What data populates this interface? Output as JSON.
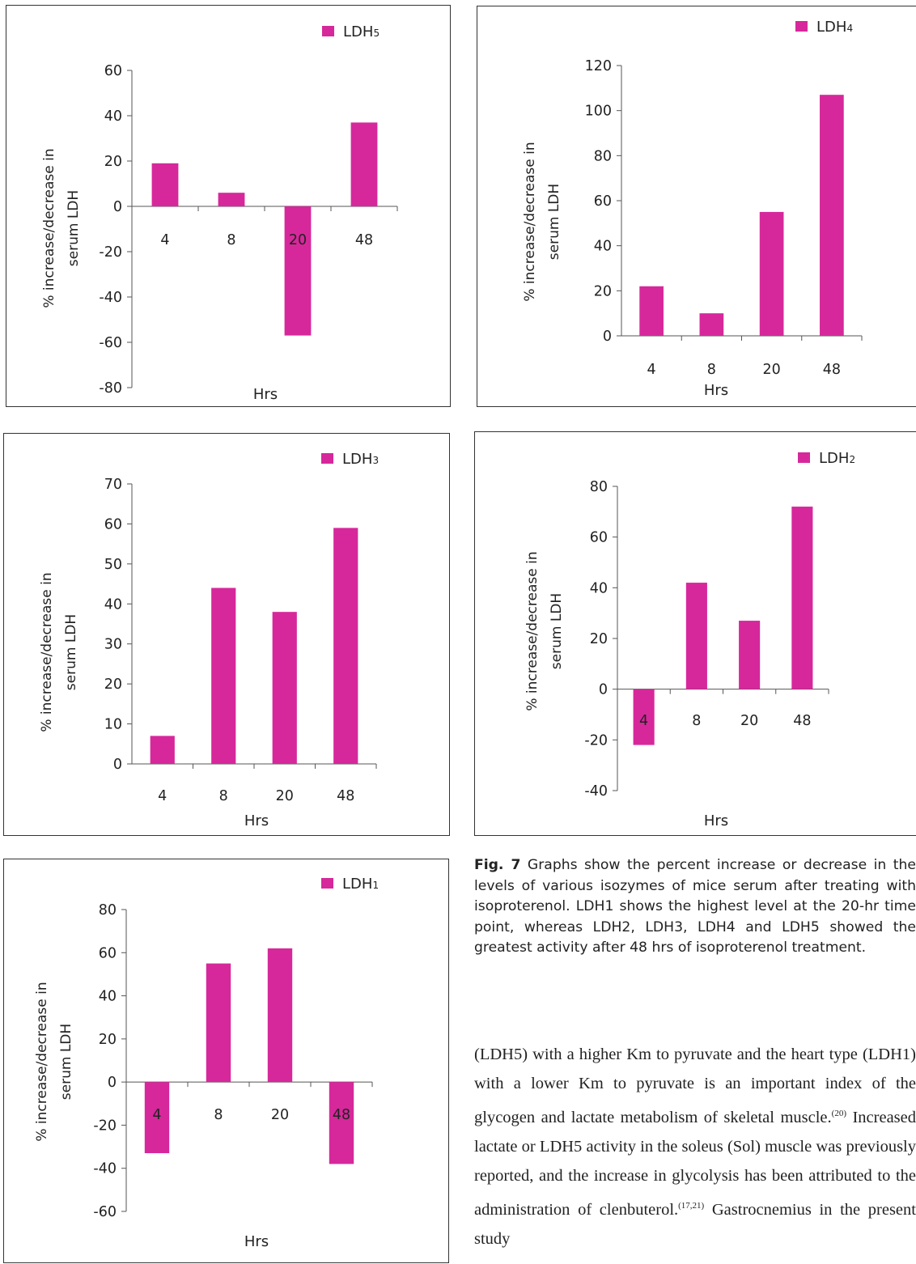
{
  "chart_data": [
    {
      "id": "ldh5",
      "type": "bar",
      "legend": "LDH5",
      "categories": [
        "4",
        "8",
        "20",
        "48"
      ],
      "values": [
        19,
        6,
        -57,
        37
      ],
      "ylim": [
        -80,
        60
      ],
      "yticks": [
        60,
        40,
        20,
        0,
        -20,
        -40,
        -60,
        -80
      ],
      "xlabel": "Hrs",
      "ylabel_line1": "% increase/decrease in",
      "ylabel_line2": "serum LDH",
      "color": "#d6289b"
    },
    {
      "id": "ldh4",
      "type": "bar",
      "legend": "LDH4",
      "categories": [
        "4",
        "8",
        "20",
        "48"
      ],
      "values": [
        22,
        10,
        55,
        107
      ],
      "ylim": [
        0,
        120
      ],
      "yticks": [
        120,
        100,
        80,
        60,
        40,
        20,
        0
      ],
      "xlabel": "Hrs",
      "ylabel_line1": "% increase/decrease in",
      "ylabel_line2": "serum LDH",
      "color": "#d6289b"
    },
    {
      "id": "ldh3",
      "type": "bar",
      "legend": "LDH3",
      "categories": [
        "4",
        "8",
        "20",
        "48"
      ],
      "values": [
        7,
        44,
        38,
        59
      ],
      "ylim": [
        0,
        70
      ],
      "yticks": [
        70,
        60,
        50,
        40,
        30,
        20,
        10,
        0
      ],
      "xlabel": "Hrs",
      "ylabel_line1": "% increase/decrease in",
      "ylabel_line2": "serum LDH",
      "color": "#d6289b"
    },
    {
      "id": "ldh2",
      "type": "bar",
      "legend": "LDH2",
      "categories": [
        "4",
        "8",
        "20",
        "48"
      ],
      "values": [
        -22,
        42,
        27,
        72
      ],
      "ylim": [
        -40,
        80
      ],
      "yticks": [
        80,
        60,
        40,
        20,
        0,
        -20,
        -40
      ],
      "xlabel": "Hrs",
      "ylabel_line1": "% increase/decrease in",
      "ylabel_line2": "serum LDH",
      "color": "#d6289b"
    },
    {
      "id": "ldh1",
      "type": "bar",
      "legend": "LDH1",
      "categories": [
        "4",
        "8",
        "20",
        "48"
      ],
      "values": [
        -33,
        55,
        62,
        -38
      ],
      "ylim": [
        -60,
        80
      ],
      "yticks": [
        80,
        60,
        40,
        20,
        0,
        -20,
        -40,
        -60
      ],
      "xlabel": "Hrs",
      "ylabel_line1": "% increase/decrease in",
      "ylabel_line2": "serum LDH",
      "color": "#d6289b"
    }
  ],
  "caption": {
    "label": "Fig. 7",
    "text": "Graphs show the percent increase or decrease in the levels of various isozymes of mice serum after treating with isoproterenol. LDH1 shows the highest level at the 20-hr time point, whereas LDH2, LDH3, LDH4 and LDH5 showed the greatest activity after 48 hrs of isoproterenol treatment."
  },
  "body_text": {
    "p1": "(LDH5) with a higher Km to pyruvate and the heart type (LDH1) with a lower Km to pyruvate is an important index of the glycogen and lactate metabolism of skeletal muscle.",
    "ref1": "(20)",
    "p2": " Increased lactate or LDH5 activity in the soleus (Sol) muscle was previously reported, and the increase in glycolysis has been attributed to the administration of clenbuterol.",
    "ref2": "(17,21)",
    "p3": " Gastrocnemius in the present study"
  }
}
